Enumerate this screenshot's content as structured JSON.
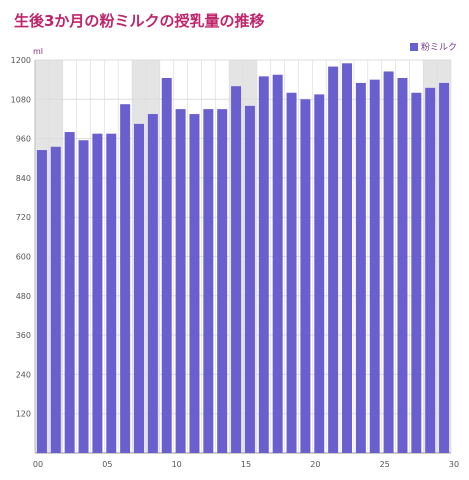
{
  "title": "生後3か月の粉ミルクの授乳量の推移",
  "colors": {
    "bar": "#6a5fcf",
    "weekend": "#e4e4e4",
    "title": "#c0246a",
    "grid": "#dddddd"
  },
  "chart_data": {
    "type": "bar",
    "title": "生後3か月の粉ミルクの授乳量の推移",
    "ylabel": "ml",
    "xlabel": "",
    "ylim": [
      0,
      1200
    ],
    "xlim": [
      0,
      30
    ],
    "yticks": [
      120,
      240,
      360,
      480,
      600,
      720,
      840,
      960,
      1080,
      1200
    ],
    "xticks": [
      {
        "x": 0,
        "label": "00"
      },
      {
        "x": 5,
        "label": "05"
      },
      {
        "x": 10,
        "label": "10"
      },
      {
        "x": 15,
        "label": "15"
      },
      {
        "x": 20,
        "label": "20"
      },
      {
        "x": 25,
        "label": "25"
      },
      {
        "x": 30,
        "label": "30"
      }
    ],
    "x": [
      0,
      1,
      2,
      3,
      4,
      5,
      6,
      7,
      8,
      9,
      10,
      11,
      12,
      13,
      14,
      15,
      16,
      17,
      18,
      19,
      20,
      21,
      22,
      23,
      24,
      25,
      26,
      27,
      28,
      29
    ],
    "series": [
      {
        "name": "粉ミルク",
        "values": [
          925,
          935,
          980,
          955,
          975,
          975,
          1065,
          1005,
          1035,
          1145,
          1050,
          1035,
          1050,
          1050,
          1120,
          1060,
          1150,
          1155,
          1100,
          1080,
          1095,
          1180,
          1190,
          1130,
          1140,
          1165,
          1145,
          1100,
          1115,
          1130
        ]
      }
    ],
    "shaded_x": [
      0,
      1,
      7,
      8,
      14,
      15,
      28,
      29
    ],
    "grid": true,
    "legend": "top-right"
  }
}
